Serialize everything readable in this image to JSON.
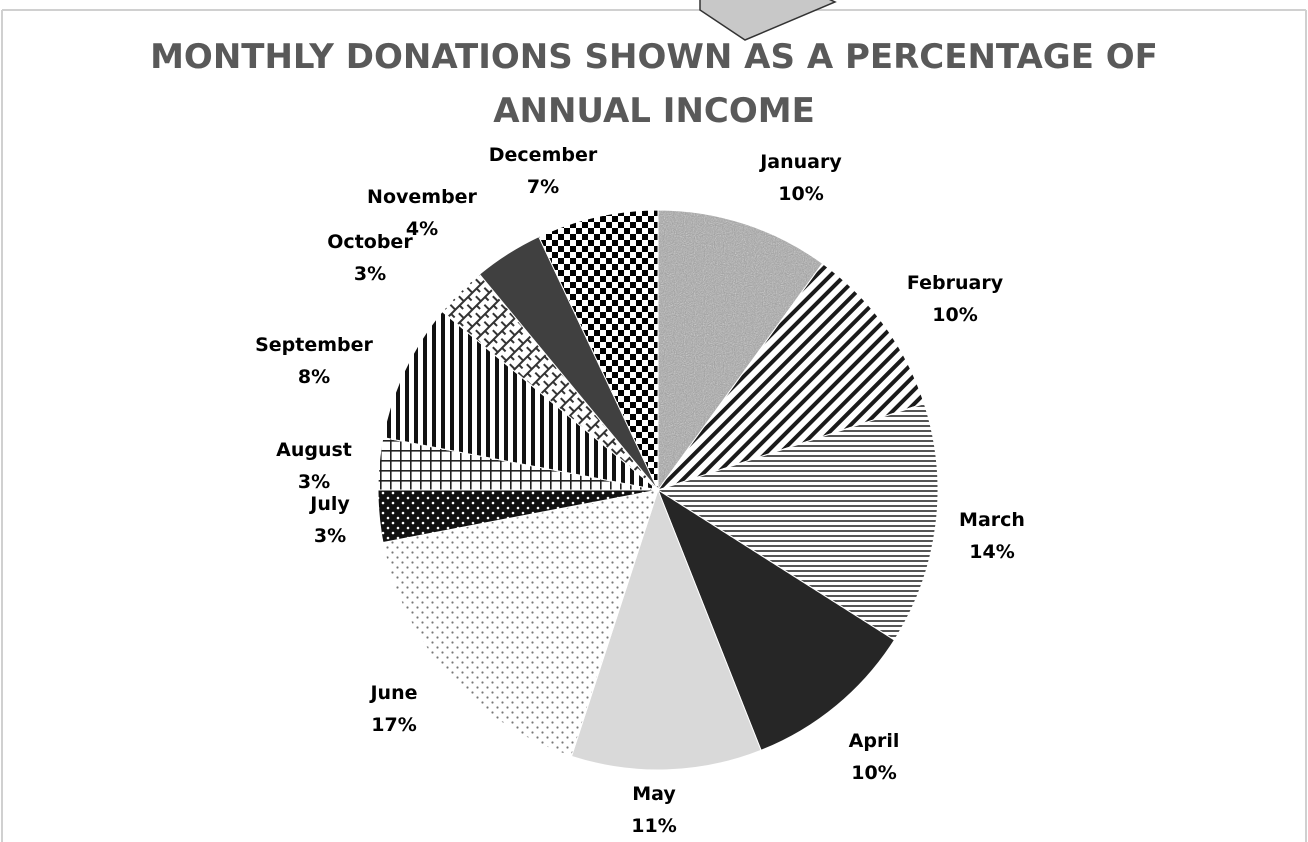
{
  "chart_data": {
    "type": "pie",
    "title_lines": [
      "MONTHLY DONATIONS SHOWN AS A PERCENTAGE OF",
      "ANNUAL INCOME"
    ],
    "categories": [
      "January",
      "February",
      "March",
      "April",
      "May",
      "June",
      "July",
      "August",
      "September",
      "October",
      "November",
      "December"
    ],
    "values": [
      10,
      10,
      14,
      10,
      11,
      17,
      3,
      3,
      8,
      3,
      4,
      7
    ],
    "value_labels": [
      "10%",
      "10%",
      "14%",
      "10%",
      "11%",
      "17%",
      "3%",
      "3%",
      "8%",
      "3%",
      "4%",
      "7%"
    ],
    "legend": "none",
    "slice_styles": [
      "noise",
      "diagonal",
      "horizontal",
      "solid-dark",
      "solid-light",
      "dots",
      "dots-on-black",
      "grid",
      "vertical",
      "diagonal-brick",
      "solid-mid",
      "checker"
    ],
    "colors": {
      "title": "#595959",
      "labels": "#000000",
      "border": "#d0d0d0",
      "dark": "#262626",
      "mid": "#404040",
      "light": "#d9d9d9"
    }
  }
}
